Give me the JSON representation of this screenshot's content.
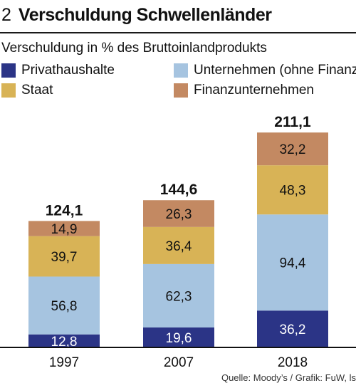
{
  "header": {
    "number": "2",
    "title": "Verschuldung Schwellenländer"
  },
  "subtitle": "Verschuldung in % des Bruttoinlandprodukts",
  "legend": [
    {
      "label": "Privathaushalte",
      "color": "#2b3486"
    },
    {
      "label": "Unternehmen (ohne Finanz)",
      "color": "#a6c4e0"
    },
    {
      "label": "Staat",
      "color": "#d8b356"
    },
    {
      "label": "Finanzunternehmen",
      "color": "#c38962"
    }
  ],
  "source": "Quelle: Moody’s / Grafik: FuW, ls",
  "chart_data": {
    "type": "bar",
    "stacked": true,
    "categories": [
      "1997",
      "2007",
      "2018"
    ],
    "series": [
      {
        "name": "Privathaushalte",
        "values": [
          12.8,
          19.6,
          36.2
        ],
        "labels": [
          "12,8",
          "19,6",
          "36,2"
        ],
        "color": "#2b3486"
      },
      {
        "name": "Unternehmen (ohne Finanz)",
        "values": [
          56.8,
          62.3,
          94.4
        ],
        "labels": [
          "56,8",
          "62,3",
          "94,4"
        ],
        "color": "#a6c4e0"
      },
      {
        "name": "Staat",
        "values": [
          39.7,
          36.4,
          48.3
        ],
        "labels": [
          "39,7",
          "36,4",
          "48,3"
        ],
        "color": "#d8b356"
      },
      {
        "name": "Finanzunternehmen",
        "values": [
          14.9,
          26.3,
          32.2
        ],
        "labels": [
          "14,9",
          "26,3",
          "32,2"
        ],
        "color": "#c38962"
      }
    ],
    "totals": [
      124.1,
      144.6,
      211.1
    ],
    "total_labels": [
      "124,1",
      "144,6",
      "211,1"
    ],
    "ylim": [
      0,
      230
    ],
    "grid": false,
    "legend_position": "top"
  }
}
